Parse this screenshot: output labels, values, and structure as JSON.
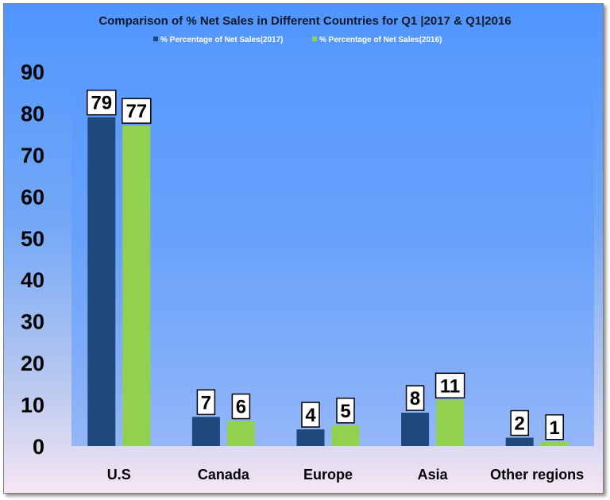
{
  "chart_data": {
    "type": "bar",
    "title": "Comparison of % Net Sales in Different Countries for Q1 |2017 & Q1|2016",
    "xlabel": "",
    "ylabel": "",
    "categories": [
      "U.S",
      "Canada",
      "Europe",
      "Asia",
      "Other regions"
    ],
    "series": [
      {
        "name": "% Percentage of Net Sales(2017)",
        "values": [
          79,
          7,
          4,
          8,
          2
        ],
        "color": "#1f497d"
      },
      {
        "name": "% Percentage of Net Sales(2016)",
        "values": [
          77,
          6,
          5,
          11,
          1
        ],
        "color": "#92d050"
      }
    ],
    "ylim": [
      0,
      90
    ],
    "yticks": [
      0,
      10,
      20,
      30,
      40,
      50,
      60,
      70,
      80,
      90
    ],
    "grid": false,
    "legend_position": "top",
    "data_labels": true
  }
}
